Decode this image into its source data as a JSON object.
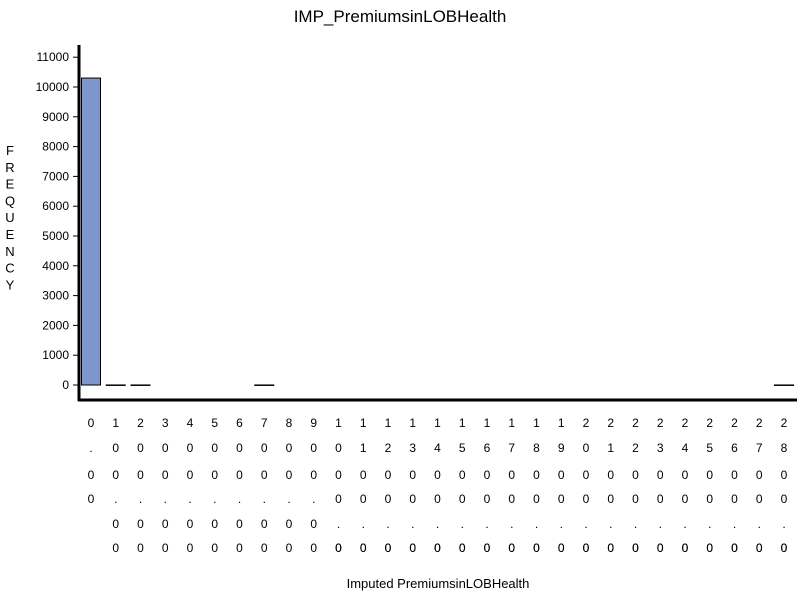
{
  "chart_data": {
    "type": "bar",
    "title": "IMP_PremiumsinLOBHealth",
    "xlabel": "Imputed PremiumsinLOBHealth",
    "ylabel": "FREQUENCY",
    "bar_color": "#7f96cc",
    "bar_edge_color": "#000000",
    "ylim": [
      0,
      11000
    ],
    "yticks": [
      0,
      1000,
      2000,
      3000,
      4000,
      5000,
      6000,
      7000,
      8000,
      9000,
      10000,
      11000
    ],
    "categories": [
      "0.00",
      "100.00",
      "200.00",
      "300.00",
      "400.00",
      "500.00",
      "600.00",
      "700.00",
      "800.00",
      "900.00",
      "1000.00",
      "1100.00",
      "1200.00",
      "1300.00",
      "1400.00",
      "1500.00",
      "1600.00",
      "1700.00",
      "1800.00",
      "1900.00",
      "2000.00",
      "2100.00",
      "2200.00",
      "2300.00",
      "2400.00",
      "2500.00",
      "2600.00",
      "2700.00",
      "2800.00"
    ],
    "values": [
      10300,
      2,
      2,
      0,
      0,
      0,
      0,
      2,
      0,
      0,
      0,
      0,
      0,
      0,
      0,
      0,
      0,
      0,
      0,
      0,
      0,
      0,
      0,
      0,
      0,
      0,
      0,
      0,
      2
    ],
    "grid": false,
    "legend": "none"
  }
}
